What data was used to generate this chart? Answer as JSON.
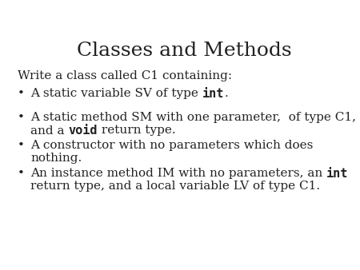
{
  "title": "Classes and Methods",
  "background_color": "#ffffff",
  "title_fontsize": 18,
  "title_font": "serif",
  "body_fontsize": 11,
  "body_font": "serif",
  "text_color": "#222222",
  "intro_line": "Write a class called C1 containing:",
  "bullet_points": [
    [
      {
        "text": "A static variable SV of type ",
        "bold": false,
        "mono": false
      },
      {
        "text": "int",
        "bold": true,
        "mono": true
      },
      {
        "text": ".",
        "bold": false,
        "mono": false
      }
    ],
    [
      {
        "text": "A static method SM with one parameter,  of type C1,",
        "bold": false,
        "mono": false,
        "newline": true
      },
      {
        "text": "and a ",
        "bold": false,
        "mono": false
      },
      {
        "text": "void",
        "bold": true,
        "mono": true
      },
      {
        "text": " return type.",
        "bold": false,
        "mono": false
      }
    ],
    [
      {
        "text": "A constructor with no parameters which does",
        "bold": false,
        "mono": false,
        "newline": true
      },
      {
        "text": "nothing.",
        "bold": false,
        "mono": false
      }
    ],
    [
      {
        "text": "An instance method IM with no parameters, an ",
        "bold": false,
        "mono": false
      },
      {
        "text": "int",
        "bold": true,
        "mono": true
      },
      {
        "text": "",
        "bold": false,
        "mono": false,
        "newline": true
      },
      {
        "text": "return type, and a local variable LV of type C1.",
        "bold": false,
        "mono": false
      }
    ]
  ]
}
